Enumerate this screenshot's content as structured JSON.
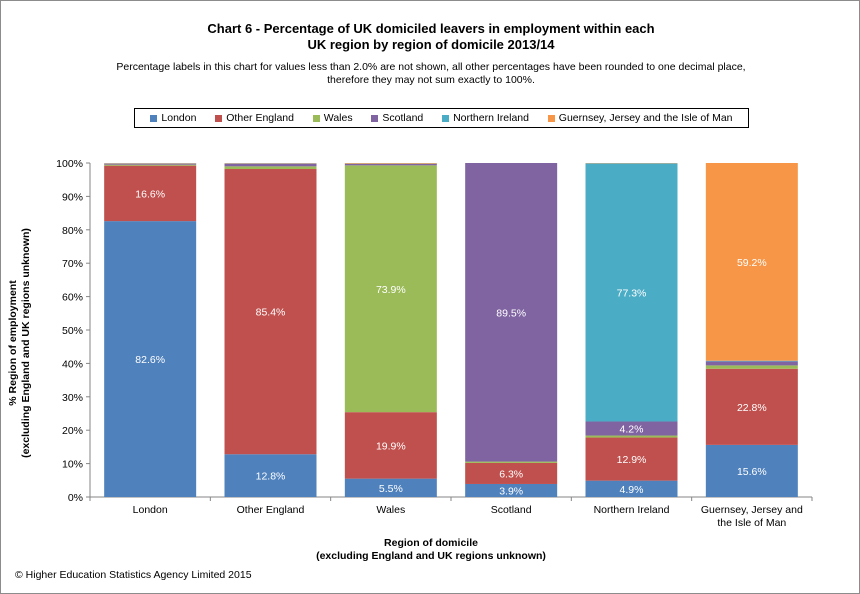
{
  "chart_data": {
    "type": "bar",
    "stacked": true,
    "title": [
      "Chart 6 - Percentage of UK domiciled leavers in employment within each",
      "UK region by region of domicile 2013/14"
    ],
    "subtitle": [
      "Percentage labels in this chart for values less than 2.0% are not shown, all other percentages have been rounded to one decimal place,",
      "therefore they may not sum exactly to 100%."
    ],
    "xlabel": [
      "Region of domicile",
      "(excluding England and UK regions unknown)"
    ],
    "ylabel": [
      "% Region of employment",
      "(excluding England and UK regions unknown)"
    ],
    "ylim": [
      0,
      100
    ],
    "yticks": [
      "0%",
      "10%",
      "20%",
      "30%",
      "40%",
      "50%",
      "60%",
      "70%",
      "80%",
      "90%",
      "100%"
    ],
    "categories": [
      [
        "London"
      ],
      [
        "Other England"
      ],
      [
        "Wales"
      ],
      [
        "Scotland"
      ],
      [
        "Northern Ireland"
      ],
      [
        "Guernsey, Jersey and",
        "the Isle of Man"
      ]
    ],
    "legend_position": "top",
    "series": [
      {
        "name": "London",
        "color": "#4f81bd",
        "values": [
          82.6,
          12.8,
          5.5,
          3.9,
          4.9,
          15.6
        ]
      },
      {
        "name": "Other England",
        "color": "#c0504d",
        "values": [
          16.6,
          85.4,
          19.9,
          6.3,
          12.9,
          22.8
        ]
      },
      {
        "name": "Wales",
        "color": "#9bbb59",
        "values": [
          0.3,
          0.8,
          73.9,
          0.4,
          0.6,
          1.0
        ]
      },
      {
        "name": "Scotland",
        "color": "#8064a2",
        "values": [
          0.3,
          0.8,
          0.4,
          89.5,
          4.2,
          1.2
        ]
      },
      {
        "name": "Northern Ireland",
        "color": "#4bacc6",
        "values": [
          0.1,
          0.1,
          0.1,
          0.3,
          77.3,
          0.2
        ]
      },
      {
        "name": "Guernsey, Jersey and the Isle of Man",
        "color": "#f79646",
        "values": [
          0.1,
          0.1,
          0.2,
          0.0,
          0.1,
          59.2
        ]
      }
    ],
    "label_threshold": 2.0
  },
  "copyright": "© Higher Education Statistics Agency Limited 2015"
}
